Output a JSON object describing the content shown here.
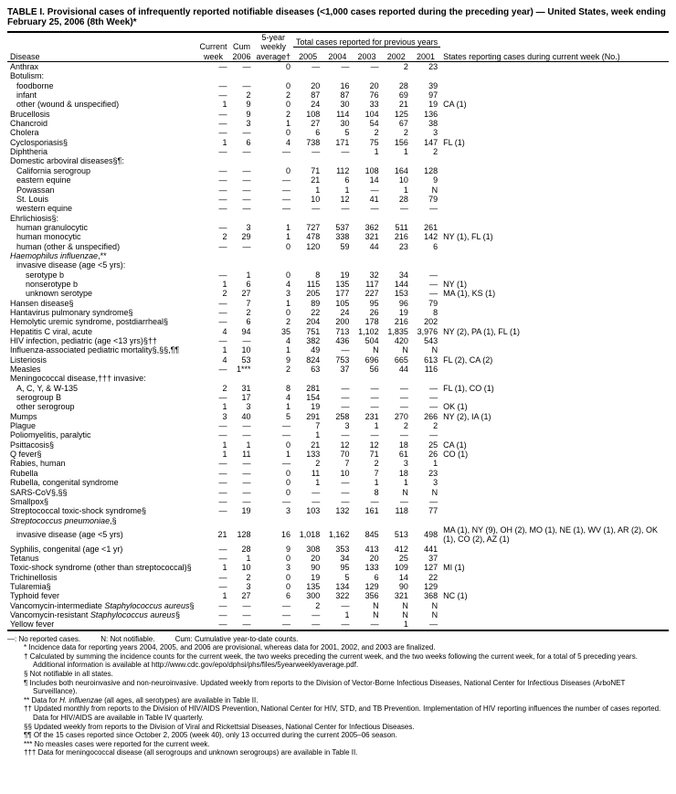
{
  "title": "TABLE I. Provisional cases of infrequently reported notifiable diseases (<1,000 cases reported during the preceding year) — United States, week ending February 25, 2006 (8th Week)*",
  "headers": {
    "disease": "Disease",
    "current_week": "Current week",
    "cum_2006": "Cum 2006",
    "five_yr": "5-year weekly average†",
    "prev_years": "Total cases reported for previous years",
    "y2005": "2005",
    "y2004": "2004",
    "y2003": "2003",
    "y2002": "2002",
    "y2001": "2001",
    "states": "States reporting cases during current week (No.)"
  },
  "rows": [
    {
      "d": "Anthrax",
      "i": 0,
      "c": [
        "—",
        "—",
        "0",
        "—",
        "—",
        "—",
        "2",
        "23",
        ""
      ]
    },
    {
      "d": "Botulism:",
      "i": 0,
      "c": [
        "",
        "",
        "",
        "",
        "",
        "",
        "",
        "",
        ""
      ]
    },
    {
      "d": "foodborne",
      "i": 1,
      "c": [
        "—",
        "—",
        "0",
        "20",
        "16",
        "20",
        "28",
        "39",
        ""
      ]
    },
    {
      "d": "infant",
      "i": 1,
      "c": [
        "—",
        "2",
        "2",
        "87",
        "87",
        "76",
        "69",
        "97",
        ""
      ]
    },
    {
      "d": "other (wound & unspecified)",
      "i": 1,
      "c": [
        "1",
        "9",
        "0",
        "24",
        "30",
        "33",
        "21",
        "19",
        "CA (1)"
      ]
    },
    {
      "d": "Brucellosis",
      "i": 0,
      "c": [
        "—",
        "9",
        "2",
        "108",
        "114",
        "104",
        "125",
        "136",
        ""
      ]
    },
    {
      "d": "Chancroid",
      "i": 0,
      "c": [
        "—",
        "3",
        "1",
        "27",
        "30",
        "54",
        "67",
        "38",
        ""
      ]
    },
    {
      "d": "Cholera",
      "i": 0,
      "c": [
        "—",
        "—",
        "0",
        "6",
        "5",
        "2",
        "2",
        "3",
        ""
      ]
    },
    {
      "d": "Cyclosporiasis§",
      "i": 0,
      "c": [
        "1",
        "6",
        "4",
        "738",
        "171",
        "75",
        "156",
        "147",
        "FL (1)"
      ]
    },
    {
      "d": "Diphtheria",
      "i": 0,
      "c": [
        "—",
        "—",
        "—",
        "—",
        "—",
        "1",
        "1",
        "2",
        ""
      ]
    },
    {
      "d": "Domestic arboviral diseases§¶:",
      "i": 0,
      "c": [
        "",
        "",
        "",
        "",
        "",
        "",
        "",
        "",
        ""
      ]
    },
    {
      "d": "California serogroup",
      "i": 1,
      "c": [
        "—",
        "—",
        "0",
        "71",
        "112",
        "108",
        "164",
        "128",
        ""
      ]
    },
    {
      "d": "eastern equine",
      "i": 1,
      "c": [
        "—",
        "—",
        "—",
        "21",
        "6",
        "14",
        "10",
        "9",
        ""
      ]
    },
    {
      "d": "Powassan",
      "i": 1,
      "c": [
        "—",
        "—",
        "—",
        "1",
        "1",
        "—",
        "1",
        "N",
        ""
      ]
    },
    {
      "d": "St. Louis",
      "i": 1,
      "c": [
        "—",
        "—",
        "—",
        "10",
        "12",
        "41",
        "28",
        "79",
        ""
      ]
    },
    {
      "d": "western equine",
      "i": 1,
      "c": [
        "—",
        "—",
        "—",
        "—",
        "—",
        "—",
        "—",
        "—",
        ""
      ]
    },
    {
      "d": "Ehrlichiosis§:",
      "i": 0,
      "c": [
        "",
        "",
        "",
        "",
        "",
        "",
        "",
        "",
        ""
      ]
    },
    {
      "d": "human granulocytic",
      "i": 1,
      "c": [
        "—",
        "3",
        "1",
        "727",
        "537",
        "362",
        "511",
        "261",
        ""
      ]
    },
    {
      "d": "human monocytic",
      "i": 1,
      "c": [
        "2",
        "29",
        "1",
        "478",
        "338",
        "321",
        "216",
        "142",
        "NY (1), FL (1)"
      ]
    },
    {
      "d": "human (other & unspecified)",
      "i": 1,
      "c": [
        "—",
        "—",
        "0",
        "120",
        "59",
        "44",
        "23",
        "6",
        ""
      ]
    },
    {
      "d": "Haemophilus influenzae,**",
      "i": 0,
      "c": [
        "",
        "",
        "",
        "",
        "",
        "",
        "",
        "",
        ""
      ]
    },
    {
      "d": "invasive disease (age <5 yrs):",
      "i": 1,
      "c": [
        "",
        "",
        "",
        "",
        "",
        "",
        "",
        "",
        ""
      ]
    },
    {
      "d": "serotype b",
      "i": 2,
      "c": [
        "—",
        "1",
        "0",
        "8",
        "19",
        "32",
        "34",
        "—",
        ""
      ]
    },
    {
      "d": "nonserotype b",
      "i": 2,
      "c": [
        "1",
        "6",
        "4",
        "115",
        "135",
        "117",
        "144",
        "—",
        "NY (1)"
      ]
    },
    {
      "d": "unknown serotype",
      "i": 2,
      "c": [
        "2",
        "27",
        "3",
        "205",
        "177",
        "227",
        "153",
        "—",
        "MA (1), KS (1)"
      ]
    },
    {
      "d": "Hansen disease§",
      "i": 0,
      "c": [
        "—",
        "7",
        "1",
        "89",
        "105",
        "95",
        "96",
        "79",
        ""
      ]
    },
    {
      "d": "Hantavirus pulmonary syndrome§",
      "i": 0,
      "c": [
        "—",
        "2",
        "0",
        "22",
        "24",
        "26",
        "19",
        "8",
        ""
      ]
    },
    {
      "d": "Hemolytic uremic syndrome, postdiarrheal§",
      "i": 0,
      "c": [
        "—",
        "6",
        "2",
        "204",
        "200",
        "178",
        "216",
        "202",
        ""
      ]
    },
    {
      "d": "Hepatitis C viral, acute",
      "i": 0,
      "c": [
        "4",
        "94",
        "35",
        "751",
        "713",
        "1,102",
        "1,835",
        "3,976",
        "NY (2), PA (1), FL (1)"
      ]
    },
    {
      "d": "HIV infection, pediatric (age <13 yrs)§††",
      "i": 0,
      "c": [
        "—",
        "—",
        "4",
        "382",
        "436",
        "504",
        "420",
        "543",
        ""
      ]
    },
    {
      "d": "Influenza-associated pediatric mortality§,§§,¶¶",
      "i": 0,
      "c": [
        "1",
        "10",
        "1",
        "49",
        "—",
        "N",
        "N",
        "N",
        ""
      ]
    },
    {
      "d": "Listeriosis",
      "i": 0,
      "c": [
        "4",
        "53",
        "9",
        "824",
        "753",
        "696",
        "665",
        "613",
        "FL (2), CA (2)"
      ]
    },
    {
      "d": "Measles",
      "i": 0,
      "c": [
        "—",
        "1***",
        "2",
        "63",
        "37",
        "56",
        "44",
        "116",
        ""
      ]
    },
    {
      "d": "Meningococcal disease,††† invasive:",
      "i": 0,
      "c": [
        "",
        "",
        "",
        "",
        "",
        "",
        "",
        "",
        ""
      ]
    },
    {
      "d": "A, C, Y, & W-135",
      "i": 1,
      "c": [
        "2",
        "31",
        "8",
        "281",
        "—",
        "—",
        "—",
        "—",
        "FL (1), CO (1)"
      ]
    },
    {
      "d": "serogroup B",
      "i": 1,
      "c": [
        "—",
        "17",
        "4",
        "154",
        "—",
        "—",
        "—",
        "—",
        ""
      ]
    },
    {
      "d": "other serogroup",
      "i": 1,
      "c": [
        "1",
        "3",
        "1",
        "19",
        "—",
        "—",
        "—",
        "—",
        "OK (1)"
      ]
    },
    {
      "d": "Mumps",
      "i": 0,
      "c": [
        "3",
        "40",
        "5",
        "291",
        "258",
        "231",
        "270",
        "266",
        "NY (2), IA (1)"
      ]
    },
    {
      "d": "Plague",
      "i": 0,
      "c": [
        "—",
        "—",
        "—",
        "7",
        "3",
        "1",
        "2",
        "2",
        ""
      ]
    },
    {
      "d": "Poliomyelitis, paralytic",
      "i": 0,
      "c": [
        "—",
        "—",
        "—",
        "1",
        "—",
        "—",
        "—",
        "—",
        ""
      ]
    },
    {
      "d": "Psittacosis§",
      "i": 0,
      "c": [
        "1",
        "1",
        "0",
        "21",
        "12",
        "12",
        "18",
        "25",
        "CA (1)"
      ]
    },
    {
      "d": "Q fever§",
      "i": 0,
      "c": [
        "1",
        "11",
        "1",
        "133",
        "70",
        "71",
        "61",
        "26",
        "CO (1)"
      ]
    },
    {
      "d": "Rabies, human",
      "i": 0,
      "c": [
        "—",
        "—",
        "—",
        "2",
        "7",
        "2",
        "3",
        "1",
        ""
      ]
    },
    {
      "d": "Rubella",
      "i": 0,
      "c": [
        "—",
        "—",
        "0",
        "11",
        "10",
        "7",
        "18",
        "23",
        ""
      ]
    },
    {
      "d": "Rubella, congenital syndrome",
      "i": 0,
      "c": [
        "—",
        "—",
        "0",
        "1",
        "—",
        "1",
        "1",
        "3",
        ""
      ]
    },
    {
      "d": "SARS-CoV§,§§",
      "i": 0,
      "c": [
        "—",
        "—",
        "0",
        "—",
        "—",
        "8",
        "N",
        "N",
        ""
      ]
    },
    {
      "d": "Smallpox§",
      "i": 0,
      "c": [
        "—",
        "—",
        "—",
        "—",
        "—",
        "—",
        "—",
        "—",
        ""
      ]
    },
    {
      "d": "Streptococcal toxic-shock syndrome§",
      "i": 0,
      "c": [
        "—",
        "19",
        "3",
        "103",
        "132",
        "161",
        "118",
        "77",
        ""
      ]
    },
    {
      "d": "Streptococcus pneumoniae,§",
      "i": 0,
      "c": [
        "",
        "",
        "",
        "",
        "",
        "",
        "",
        "",
        ""
      ]
    },
    {
      "d": "invasive disease (age <5 yrs)",
      "i": 1,
      "c": [
        "21",
        "128",
        "16",
        "1,018",
        "1,162",
        "845",
        "513",
        "498",
        "MA (1), NY (9), OH (2), MO (1), NE (1), WV (1), AR (2), OK (1), CO (2), AZ (1)"
      ]
    },
    {
      "d": "Syphilis, congenital (age <1 yr)",
      "i": 0,
      "c": [
        "—",
        "28",
        "9",
        "308",
        "353",
        "413",
        "412",
        "441",
        ""
      ]
    },
    {
      "d": "Tetanus",
      "i": 0,
      "c": [
        "—",
        "1",
        "0",
        "20",
        "34",
        "20",
        "25",
        "37",
        ""
      ]
    },
    {
      "d": "Toxic-shock syndrome (other than streptococcal)§",
      "i": 0,
      "c": [
        "1",
        "10",
        "3",
        "90",
        "95",
        "133",
        "109",
        "127",
        "MI (1)"
      ]
    },
    {
      "d": "Trichinellosis",
      "i": 0,
      "c": [
        "—",
        "2",
        "0",
        "19",
        "5",
        "6",
        "14",
        "22",
        ""
      ]
    },
    {
      "d": "Tularemia§",
      "i": 0,
      "c": [
        "—",
        "3",
        "0",
        "135",
        "134",
        "129",
        "90",
        "129",
        ""
      ]
    },
    {
      "d": "Typhoid fever",
      "i": 0,
      "c": [
        "1",
        "27",
        "6",
        "300",
        "322",
        "356",
        "321",
        "368",
        "NC (1)"
      ]
    },
    {
      "d": "Vancomycin-intermediate Staphylococcus aureus§",
      "i": 0,
      "c": [
        "—",
        "—",
        "—",
        "2",
        "—",
        "N",
        "N",
        "N",
        ""
      ]
    },
    {
      "d": "Vancomycin-resistant Staphylococcus aureus§",
      "i": 0,
      "c": [
        "—",
        "—",
        "—",
        "—",
        "1",
        "N",
        "N",
        "N",
        ""
      ]
    },
    {
      "d": "Yellow fever",
      "i": 0,
      "c": [
        "—",
        "—",
        "—",
        "—",
        "—",
        "—",
        "1",
        "—",
        ""
      ]
    }
  ],
  "fn_inline": {
    "a": "—: No reported cases.",
    "b": "N: Not notifiable.",
    "c": "Cum: Cumulative year-to-date counts."
  },
  "footnotes": [
    {
      "s": "*",
      "t": "Incidence data for reporting years 2004, 2005, and 2006 are provisional, whereas data for 2001, 2002, and 2003 are finalized."
    },
    {
      "s": "†",
      "t": "Calculated by summing the incidence counts for the current week, the two weeks preceding the current week, and the two weeks following the current week, for a total of 5 preceding years. Additional information is available at http://www.cdc.gov/epo/dphsi/phs/files/5yearweeklyaverage.pdf."
    },
    {
      "s": "§",
      "t": "Not notifiable in all states."
    },
    {
      "s": "¶",
      "t": "Includes both neuroinvasive and non-neuroinvasive. Updated weekly from reports to the Division of Vector-Borne Infectious Diseases, National Center for Infectious Diseases (ArboNET Surveillance)."
    },
    {
      "s": "**",
      "t": "Data for H. influenzae (all ages, all serotypes) are available in Table II."
    },
    {
      "s": "††",
      "t": "Updated monthly from reports to the Division of HIV/AIDS Prevention, National Center for HIV, STD, and TB Prevention. Implementation of HIV reporting influences the number of cases reported. Data for HIV/AIDS are available in Table IV quarterly."
    },
    {
      "s": "§§",
      "t": "Updated weekly from reports to the Division of Viral and Rickettsial Diseases, National Center for Infectious Diseases."
    },
    {
      "s": "¶¶",
      "t": "Of the 15 cases reported since October 2, 2005 (week 40), only 13 occurred during the current 2005–06 season."
    },
    {
      "s": "***",
      "t": "No measles cases were reported for the current week."
    },
    {
      "s": "†††",
      "t": "Data for meningococcal disease (all serogroups and unknown serogroups) are available in Table II."
    }
  ]
}
